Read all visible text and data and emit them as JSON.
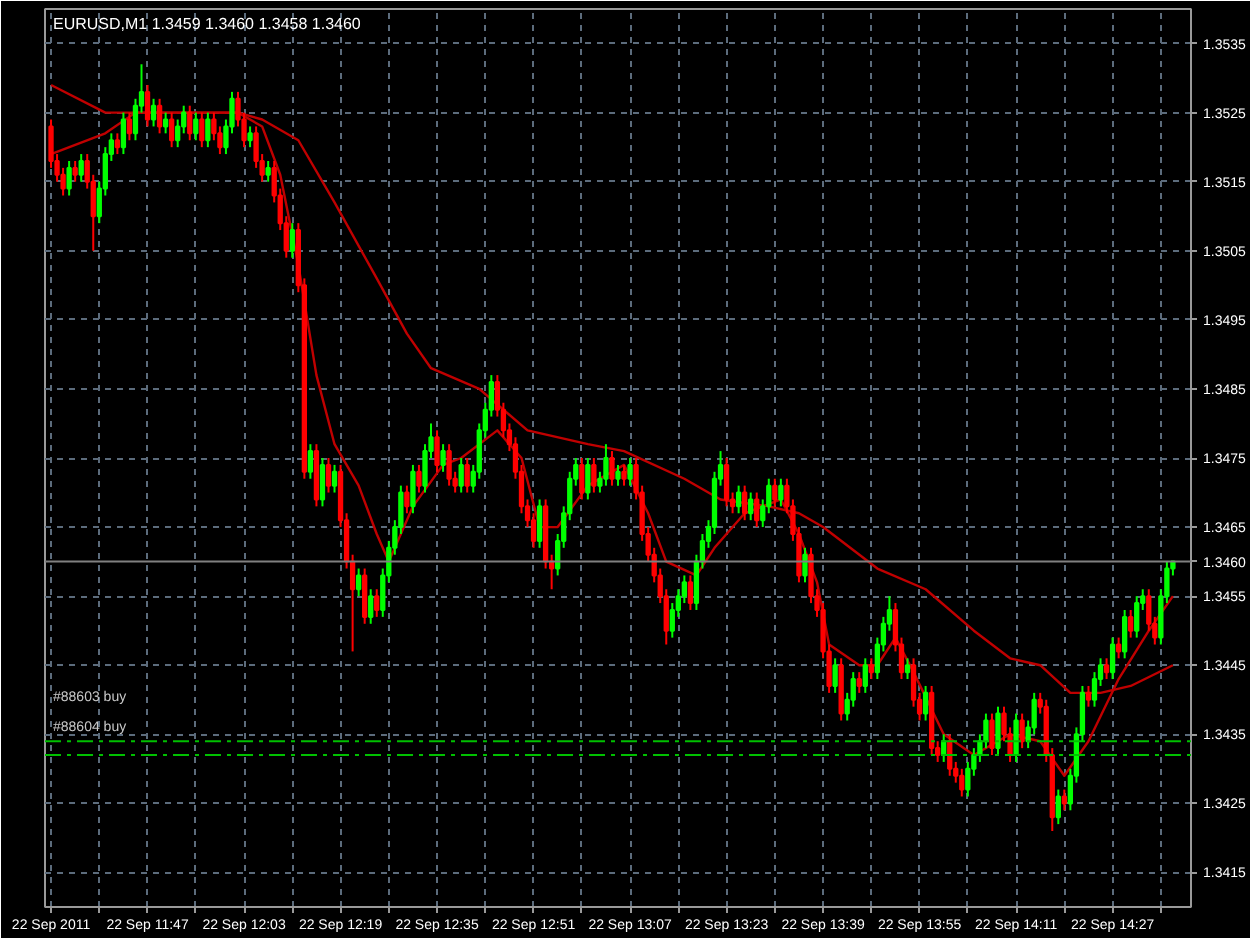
{
  "chart_data": {
    "type": "candlestick",
    "title": "EURUSD,M1  1.3459 1.3460 1.3458 1.3460",
    "x": [
      "2011-09-22T11:31",
      "2011-09-22T11:32",
      "2011-09-22T11:33",
      "2011-09-22T11:34",
      "2011-09-22T11:35",
      "2011-09-22T11:36",
      "2011-09-22T11:37",
      "2011-09-22T11:38",
      "2011-09-22T11:39",
      "2011-09-22T11:40",
      "2011-09-22T11:41",
      "2011-09-22T11:42",
      "2011-09-22T11:43",
      "2011-09-22T11:44",
      "2011-09-22T11:45",
      "2011-09-22T11:46",
      "2011-09-22T11:47",
      "2011-09-22T11:48",
      "2011-09-22T11:49",
      "2011-09-22T11:50",
      "2011-09-22T11:51",
      "2011-09-22T11:52",
      "2011-09-22T11:53",
      "2011-09-22T11:54",
      "2011-09-22T11:55",
      "2011-09-22T11:56",
      "2011-09-22T11:57",
      "2011-09-22T11:58",
      "2011-09-22T11:59",
      "2011-09-22T12:00",
      "2011-09-22T12:01",
      "2011-09-22T12:02",
      "2011-09-22T12:03",
      "2011-09-22T12:04",
      "2011-09-22T12:05",
      "2011-09-22T12:06",
      "2011-09-22T12:07",
      "2011-09-22T12:08",
      "2011-09-22T12:09",
      "2011-09-22T12:10",
      "2011-09-22T12:11",
      "2011-09-22T12:12",
      "2011-09-22T12:13",
      "2011-09-22T12:14",
      "2011-09-22T12:15",
      "2011-09-22T12:16",
      "2011-09-22T12:17",
      "2011-09-22T12:18",
      "2011-09-22T12:19",
      "2011-09-22T12:20",
      "2011-09-22T12:21",
      "2011-09-22T12:22",
      "2011-09-22T12:23",
      "2011-09-22T12:24",
      "2011-09-22T12:25",
      "2011-09-22T12:26",
      "2011-09-22T12:27",
      "2011-09-22T12:28",
      "2011-09-22T12:29",
      "2011-09-22T12:30",
      "2011-09-22T12:31",
      "2011-09-22T12:32",
      "2011-09-22T12:33",
      "2011-09-22T12:34",
      "2011-09-22T12:35",
      "2011-09-22T12:36",
      "2011-09-22T12:37",
      "2011-09-22T12:38",
      "2011-09-22T12:39",
      "2011-09-22T12:40",
      "2011-09-22T12:41",
      "2011-09-22T12:42",
      "2011-09-22T12:43",
      "2011-09-22T12:44",
      "2011-09-22T12:45",
      "2011-09-22T12:46",
      "2011-09-22T12:47",
      "2011-09-22T12:48",
      "2011-09-22T12:49",
      "2011-09-22T12:50",
      "2011-09-22T12:51",
      "2011-09-22T12:52",
      "2011-09-22T12:53",
      "2011-09-22T12:54",
      "2011-09-22T12:55",
      "2011-09-22T12:56",
      "2011-09-22T12:57",
      "2011-09-22T12:58",
      "2011-09-22T12:59",
      "2011-09-22T13:00",
      "2011-09-22T13:01",
      "2011-09-22T13:02",
      "2011-09-22T13:03",
      "2011-09-22T13:04",
      "2011-09-22T13:05",
      "2011-09-22T13:06",
      "2011-09-22T13:07",
      "2011-09-22T13:08",
      "2011-09-22T13:09",
      "2011-09-22T13:10",
      "2011-09-22T13:11",
      "2011-09-22T13:12",
      "2011-09-22T13:13",
      "2011-09-22T13:14",
      "2011-09-22T13:15",
      "2011-09-22T13:16",
      "2011-09-22T13:17",
      "2011-09-22T13:18",
      "2011-09-22T13:19",
      "2011-09-22T13:20",
      "2011-09-22T13:21",
      "2011-09-22T13:22",
      "2011-09-22T13:23",
      "2011-09-22T13:24",
      "2011-09-22T13:25",
      "2011-09-22T13:26",
      "2011-09-22T13:27",
      "2011-09-22T13:28",
      "2011-09-22T13:29",
      "2011-09-22T13:30",
      "2011-09-22T13:31",
      "2011-09-22T13:32",
      "2011-09-22T13:33",
      "2011-09-22T13:34",
      "2011-09-22T13:35",
      "2011-09-22T13:36",
      "2011-09-22T13:37",
      "2011-09-22T13:38",
      "2011-09-22T13:39",
      "2011-09-22T13:40",
      "2011-09-22T13:41",
      "2011-09-22T13:42",
      "2011-09-22T13:43",
      "2011-09-22T13:44",
      "2011-09-22T13:45",
      "2011-09-22T13:46",
      "2011-09-22T13:47",
      "2011-09-22T13:48",
      "2011-09-22T13:49",
      "2011-09-22T13:50",
      "2011-09-22T13:51",
      "2011-09-22T13:52",
      "2011-09-22T13:53",
      "2011-09-22T13:54",
      "2011-09-22T13:55",
      "2011-09-22T13:56",
      "2011-09-22T13:57",
      "2011-09-22T13:58",
      "2011-09-22T13:59",
      "2011-09-22T14:00",
      "2011-09-22T14:01",
      "2011-09-22T14:02",
      "2011-09-22T14:03",
      "2011-09-22T14:04",
      "2011-09-22T14:05",
      "2011-09-22T14:06",
      "2011-09-22T14:07",
      "2011-09-22T14:08",
      "2011-09-22T14:09",
      "2011-09-22T14:10",
      "2011-09-22T14:11",
      "2011-09-22T14:12",
      "2011-09-22T14:13",
      "2011-09-22T14:14",
      "2011-09-22T14:15",
      "2011-09-22T14:16",
      "2011-09-22T14:17",
      "2011-09-22T14:18",
      "2011-09-22T14:19",
      "2011-09-22T14:20",
      "2011-09-22T14:21",
      "2011-09-22T14:22",
      "2011-09-22T14:23",
      "2011-09-22T14:24",
      "2011-09-22T14:25",
      "2011-09-22T14:26",
      "2011-09-22T14:27",
      "2011-09-22T14:28",
      "2011-09-22T14:29",
      "2011-09-22T14:30",
      "2011-09-22T14:31",
      "2011-09-22T14:32",
      "2011-09-22T14:33",
      "2011-09-22T14:34",
      "2011-09-22T14:35",
      "2011-09-22T14:36",
      "2011-09-22T14:37"
    ],
    "ohlc": [
      [
        1.3523,
        1.3524,
        1.3517,
        1.3518
      ],
      [
        1.3518,
        1.3519,
        1.3515,
        1.3516
      ],
      [
        1.3516,
        1.3517,
        1.3513,
        1.3514
      ],
      [
        1.3514,
        1.3518,
        1.3513,
        1.3517
      ],
      [
        1.3517,
        1.3518,
        1.3515,
        1.3516
      ],
      [
        1.3516,
        1.3519,
        1.3515,
        1.3518
      ],
      [
        1.3518,
        1.3519,
        1.3514,
        1.3515
      ],
      [
        1.3515,
        1.3516,
        1.3505,
        1.351
      ],
      [
        1.351,
        1.3515,
        1.3509,
        1.3514
      ],
      [
        1.3514,
        1.352,
        1.3513,
        1.3519
      ],
      [
        1.3519,
        1.3522,
        1.3518,
        1.3521
      ],
      [
        1.3521,
        1.3522,
        1.3519,
        1.352
      ],
      [
        1.352,
        1.3525,
        1.3519,
        1.3524
      ],
      [
        1.3524,
        1.3525,
        1.3521,
        1.3522
      ],
      [
        1.3522,
        1.3527,
        1.3521,
        1.3526
      ],
      [
        1.3526,
        1.3532,
        1.3525,
        1.3528
      ],
      [
        1.3528,
        1.3529,
        1.3523,
        1.3524
      ],
      [
        1.3524,
        1.3527,
        1.3523,
        1.3526
      ],
      [
        1.3526,
        1.3527,
        1.3522,
        1.3523
      ],
      [
        1.3523,
        1.3525,
        1.3522,
        1.3524
      ],
      [
        1.3524,
        1.3525,
        1.352,
        1.3521
      ],
      [
        1.3521,
        1.3524,
        1.352,
        1.3523
      ],
      [
        1.3523,
        1.3526,
        1.3522,
        1.3525
      ],
      [
        1.3525,
        1.3526,
        1.3521,
        1.3522
      ],
      [
        1.3522,
        1.3525,
        1.3521,
        1.3524
      ],
      [
        1.3524,
        1.3525,
        1.352,
        1.3521
      ],
      [
        1.3521,
        1.3525,
        1.352,
        1.3524
      ],
      [
        1.3524,
        1.3525,
        1.3521,
        1.3522
      ],
      [
        1.3522,
        1.3523,
        1.3519,
        1.352
      ],
      [
        1.352,
        1.3524,
        1.3519,
        1.3523
      ],
      [
        1.3523,
        1.3528,
        1.3522,
        1.3527
      ],
      [
        1.3527,
        1.3528,
        1.3523,
        1.3524
      ],
      [
        1.3524,
        1.3525,
        1.352,
        1.3521
      ],
      [
        1.3521,
        1.3523,
        1.352,
        1.3522
      ],
      [
        1.3522,
        1.3523,
        1.3517,
        1.3518
      ],
      [
        1.3518,
        1.3519,
        1.3515,
        1.3516
      ],
      [
        1.3516,
        1.3518,
        1.3515,
        1.3517
      ],
      [
        1.3517,
        1.3518,
        1.3512,
        1.3513
      ],
      [
        1.3513,
        1.3514,
        1.3508,
        1.3509
      ],
      [
        1.3509,
        1.351,
        1.3504,
        1.3505
      ],
      [
        1.3505,
        1.3509,
        1.3504,
        1.3508
      ],
      [
        1.3508,
        1.3509,
        1.3499,
        1.35
      ],
      [
        1.35,
        1.3501,
        1.3472,
        1.3473
      ],
      [
        1.3473,
        1.3477,
        1.3472,
        1.3476
      ],
      [
        1.3476,
        1.3477,
        1.3468,
        1.3469
      ],
      [
        1.3469,
        1.3475,
        1.3468,
        1.3474
      ],
      [
        1.3474,
        1.3475,
        1.347,
        1.3471
      ],
      [
        1.3471,
        1.3474,
        1.347,
        1.3473
      ],
      [
        1.3473,
        1.3474,
        1.3465,
        1.3466
      ],
      [
        1.3466,
        1.3467,
        1.3459,
        1.346
      ],
      [
        1.346,
        1.3461,
        1.3447,
        1.3456
      ],
      [
        1.3456,
        1.3459,
        1.3455,
        1.3458
      ],
      [
        1.3458,
        1.3459,
        1.3451,
        1.3452
      ],
      [
        1.3452,
        1.3456,
        1.3451,
        1.3455
      ],
      [
        1.3455,
        1.3456,
        1.3452,
        1.3453
      ],
      [
        1.3453,
        1.3459,
        1.3452,
        1.3458
      ],
      [
        1.3458,
        1.3463,
        1.3457,
        1.3462
      ],
      [
        1.3462,
        1.3466,
        1.3461,
        1.3465
      ],
      [
        1.3465,
        1.3471,
        1.3464,
        1.347
      ],
      [
        1.347,
        1.3471,
        1.3467,
        1.3468
      ],
      [
        1.3468,
        1.3474,
        1.3467,
        1.3473
      ],
      [
        1.3473,
        1.3474,
        1.347,
        1.3471
      ],
      [
        1.3471,
        1.3477,
        1.347,
        1.3476
      ],
      [
        1.3476,
        1.348,
        1.3475,
        1.3478
      ],
      [
        1.3478,
        1.3479,
        1.3473,
        1.3474
      ],
      [
        1.3474,
        1.3477,
        1.3473,
        1.3476
      ],
      [
        1.3476,
        1.3477,
        1.3471,
        1.3472
      ],
      [
        1.3472,
        1.3473,
        1.347,
        1.3471
      ],
      [
        1.3471,
        1.3475,
        1.347,
        1.3474
      ],
      [
        1.3474,
        1.3475,
        1.347,
        1.3471
      ],
      [
        1.3471,
        1.3474,
        1.347,
        1.3473
      ],
      [
        1.3473,
        1.348,
        1.3472,
        1.3479
      ],
      [
        1.3479,
        1.3483,
        1.3478,
        1.3482
      ],
      [
        1.3482,
        1.3487,
        1.3481,
        1.3486
      ],
      [
        1.3486,
        1.3487,
        1.3481,
        1.3482
      ],
      [
        1.3482,
        1.3483,
        1.3478,
        1.3479
      ],
      [
        1.3479,
        1.348,
        1.3476,
        1.3477
      ],
      [
        1.3477,
        1.3478,
        1.3472,
        1.3473
      ],
      [
        1.3473,
        1.3474,
        1.3467,
        1.3468
      ],
      [
        1.3468,
        1.3469,
        1.3465,
        1.3466
      ],
      [
        1.3466,
        1.3467,
        1.3462,
        1.3463
      ],
      [
        1.3463,
        1.3469,
        1.3462,
        1.3468
      ],
      [
        1.3468,
        1.3469,
        1.3459,
        1.346
      ],
      [
        1.346,
        1.3461,
        1.3456,
        1.3459
      ],
      [
        1.3459,
        1.3464,
        1.3458,
        1.3463
      ],
      [
        1.3463,
        1.3468,
        1.3462,
        1.3467
      ],
      [
        1.3467,
        1.3473,
        1.3466,
        1.3472
      ],
      [
        1.3472,
        1.3475,
        1.3471,
        1.3474
      ],
      [
        1.3474,
        1.3475,
        1.3469,
        1.347
      ],
      [
        1.347,
        1.3475,
        1.3469,
        1.3474
      ],
      [
        1.3474,
        1.3475,
        1.347,
        1.3471
      ],
      [
        1.3471,
        1.3473,
        1.347,
        1.3472
      ],
      [
        1.3472,
        1.3477,
        1.3471,
        1.3475
      ],
      [
        1.3475,
        1.3476,
        1.3471,
        1.3472
      ],
      [
        1.3472,
        1.3474,
        1.3471,
        1.3473
      ],
      [
        1.3473,
        1.3474,
        1.3471,
        1.3472
      ],
      [
        1.3472,
        1.3475,
        1.3471,
        1.3474
      ],
      [
        1.3474,
        1.3475,
        1.3469,
        1.347
      ],
      [
        1.347,
        1.3471,
        1.3463,
        1.3464
      ],
      [
        1.3464,
        1.3465,
        1.346,
        1.3461
      ],
      [
        1.3461,
        1.3462,
        1.3457,
        1.3458
      ],
      [
        1.3458,
        1.3459,
        1.3454,
        1.3455
      ],
      [
        1.3455,
        1.3456,
        1.3448,
        1.345
      ],
      [
        1.345,
        1.3454,
        1.3449,
        1.3453
      ],
      [
        1.3453,
        1.3456,
        1.3452,
        1.3455
      ],
      [
        1.3455,
        1.3458,
        1.3454,
        1.3457
      ],
      [
        1.3457,
        1.3458,
        1.3453,
        1.3454
      ],
      [
        1.3454,
        1.3461,
        1.3453,
        1.346
      ],
      [
        1.346,
        1.3464,
        1.3459,
        1.3463
      ],
      [
        1.3463,
        1.3466,
        1.3462,
        1.3465
      ],
      [
        1.3465,
        1.3473,
        1.3464,
        1.3472
      ],
      [
        1.3472,
        1.3476,
        1.3471,
        1.3474
      ],
      [
        1.3474,
        1.3475,
        1.3468,
        1.3469
      ],
      [
        1.3469,
        1.347,
        1.3467,
        1.3468
      ],
      [
        1.3468,
        1.3471,
        1.3467,
        1.347
      ],
      [
        1.347,
        1.3471,
        1.3466,
        1.3467
      ],
      [
        1.3467,
        1.347,
        1.3466,
        1.3469
      ],
      [
        1.3469,
        1.347,
        1.3465,
        1.3466
      ],
      [
        1.3466,
        1.3469,
        1.3465,
        1.3468
      ],
      [
        1.3468,
        1.3472,
        1.3467,
        1.3471
      ],
      [
        1.3471,
        1.3472,
        1.3468,
        1.3469
      ],
      [
        1.3469,
        1.3472,
        1.3468,
        1.3471
      ],
      [
        1.3471,
        1.3472,
        1.3467,
        1.3468
      ],
      [
        1.3468,
        1.3469,
        1.3463,
        1.3464
      ],
      [
        1.3464,
        1.3465,
        1.3457,
        1.3458
      ],
      [
        1.3458,
        1.3462,
        1.3457,
        1.3461
      ],
      [
        1.3461,
        1.3462,
        1.3454,
        1.3455
      ],
      [
        1.3455,
        1.3456,
        1.3452,
        1.3453
      ],
      [
        1.3453,
        1.3454,
        1.3446,
        1.3447
      ],
      [
        1.3447,
        1.3448,
        1.3441,
        1.3442
      ],
      [
        1.3442,
        1.3446,
        1.3441,
        1.3445
      ],
      [
        1.3445,
        1.3446,
        1.3437,
        1.3438
      ],
      [
        1.3438,
        1.3441,
        1.3437,
        1.344
      ],
      [
        1.344,
        1.3444,
        1.3439,
        1.3443
      ],
      [
        1.3443,
        1.3444,
        1.3441,
        1.3442
      ],
      [
        1.3442,
        1.3446,
        1.3441,
        1.3445
      ],
      [
        1.3445,
        1.3446,
        1.3443,
        1.3444
      ],
      [
        1.3444,
        1.3449,
        1.3443,
        1.3448
      ],
      [
        1.3448,
        1.3452,
        1.3447,
        1.3451
      ],
      [
        1.3451,
        1.3455,
        1.345,
        1.3453
      ],
      [
        1.3453,
        1.3454,
        1.3447,
        1.3448
      ],
      [
        1.3448,
        1.3449,
        1.3443,
        1.3444
      ],
      [
        1.3444,
        1.3446,
        1.3443,
        1.3445
      ],
      [
        1.3445,
        1.3446,
        1.3439,
        1.344
      ],
      [
        1.344,
        1.3441,
        1.3437,
        1.3438
      ],
      [
        1.3438,
        1.3442,
        1.3437,
        1.3441
      ],
      [
        1.3441,
        1.3442,
        1.3432,
        1.3433
      ],
      [
        1.3433,
        1.3434,
        1.3431,
        1.3432
      ],
      [
        1.3432,
        1.3435,
        1.3431,
        1.3434
      ],
      [
        1.3434,
        1.3435,
        1.3429,
        1.343
      ],
      [
        1.343,
        1.3431,
        1.3428,
        1.3429
      ],
      [
        1.3429,
        1.343,
        1.3426,
        1.3427
      ],
      [
        1.3427,
        1.3431,
        1.3426,
        1.343
      ],
      [
        1.343,
        1.3433,
        1.3429,
        1.3432
      ],
      [
        1.3432,
        1.3435,
        1.3431,
        1.3434
      ],
      [
        1.3434,
        1.3438,
        1.3433,
        1.3437
      ],
      [
        1.3437,
        1.3438,
        1.3432,
        1.3433
      ],
      [
        1.3433,
        1.3439,
        1.3432,
        1.3438
      ],
      [
        1.3438,
        1.3439,
        1.3434,
        1.3435
      ],
      [
        1.3435,
        1.3436,
        1.3431,
        1.3432
      ],
      [
        1.3432,
        1.3438,
        1.3431,
        1.3437
      ],
      [
        1.3437,
        1.3438,
        1.3433,
        1.3434
      ],
      [
        1.3434,
        1.3437,
        1.3433,
        1.3436
      ],
      [
        1.3436,
        1.3441,
        1.3435,
        1.344
      ],
      [
        1.344,
        1.3441,
        1.3438,
        1.3439
      ],
      [
        1.3439,
        1.344,
        1.3431,
        1.3432
      ],
      [
        1.3432,
        1.3433,
        1.3421,
        1.3423
      ],
      [
        1.3423,
        1.3427,
        1.3422,
        1.3426
      ],
      [
        1.3426,
        1.3427,
        1.3424,
        1.3425
      ],
      [
        1.3425,
        1.343,
        1.3424,
        1.3429
      ],
      [
        1.3429,
        1.3436,
        1.3428,
        1.3435
      ],
      [
        1.3435,
        1.3442,
        1.3434,
        1.3441
      ],
      [
        1.3441,
        1.3442,
        1.3439,
        1.344
      ],
      [
        1.344,
        1.3444,
        1.3439,
        1.3443
      ],
      [
        1.3443,
        1.3446,
        1.3442,
        1.3445
      ],
      [
        1.3445,
        1.3446,
        1.3443,
        1.3444
      ],
      [
        1.3444,
        1.3449,
        1.3443,
        1.3448
      ],
      [
        1.3448,
        1.3449,
        1.3446,
        1.3447
      ],
      [
        1.3447,
        1.3453,
        1.3446,
        1.3452
      ],
      [
        1.3452,
        1.3453,
        1.3449,
        1.345
      ],
      [
        1.345,
        1.3455,
        1.3449,
        1.3454
      ],
      [
        1.3454,
        1.3456,
        1.3453,
        1.3455
      ],
      [
        1.3455,
        1.3456,
        1.345,
        1.3451
      ],
      [
        1.3451,
        1.3452,
        1.3448,
        1.3449
      ],
      [
        1.3449,
        1.3456,
        1.3448,
        1.3455
      ],
      [
        1.3455,
        1.346,
        1.3454,
        1.3459
      ],
      [
        1.3459,
        1.346,
        1.3458,
        1.346
      ]
    ],
    "series": [
      {
        "type": "line",
        "color": "#c00000",
        "x": [
          "2011-09-22T11:31",
          "2011-09-22T11:40",
          "2011-09-22T11:50",
          "2011-09-22T12:02",
          "2011-09-22T12:06",
          "2011-09-22T12:12",
          "2011-09-22T12:18",
          "2011-09-22T12:25",
          "2011-09-22T12:30",
          "2011-09-22T12:34",
          "2011-09-22T12:42",
          "2011-09-22T12:50",
          "2011-09-22T13:00",
          "2011-09-22T13:06",
          "2011-09-22T13:16",
          "2011-09-22T13:22",
          "2011-09-22T13:30",
          "2011-09-22T13:35",
          "2011-09-22T13:39",
          "2011-09-22T13:48",
          "2011-09-22T13:56",
          "2011-09-22T14:04",
          "2011-09-22T14:10",
          "2011-09-22T14:15",
          "2011-09-22T14:20",
          "2011-09-22T14:25",
          "2011-09-22T14:30",
          "2011-09-22T14:37"
        ],
        "values": [
          1.3529,
          1.3525,
          1.3525,
          1.3525,
          1.3524,
          1.3521,
          1.3512,
          1.3501,
          1.3493,
          1.3488,
          1.3485,
          1.3479,
          1.3477,
          1.3476,
          1.3472,
          1.3469,
          1.3468,
          1.3467,
          1.3465,
          1.3459,
          1.3456,
          1.345,
          1.3446,
          1.3445,
          1.3441,
          1.3441,
          1.3442,
          1.3445
        ]
      },
      {
        "type": "line",
        "color": "#c00000",
        "x": [
          "2011-09-22T11:31",
          "2011-09-22T11:40",
          "2011-09-22T11:45",
          "2011-09-22T12:02",
          "2011-09-22T12:06",
          "2011-09-22T12:09",
          "2011-09-22T12:12",
          "2011-09-22T12:15",
          "2011-09-22T12:18",
          "2011-09-22T12:22",
          "2011-09-22T12:25",
          "2011-09-22T12:27",
          "2011-09-22T12:31",
          "2011-09-22T12:36",
          "2011-09-22T12:39",
          "2011-09-22T12:45",
          "2011-09-22T12:49",
          "2011-09-22T12:52",
          "2011-09-22T12:55",
          "2011-09-22T13:00",
          "2011-09-22T13:06",
          "2011-09-22T13:10",
          "2011-09-22T13:13",
          "2011-09-22T13:18",
          "2011-09-22T13:21",
          "2011-09-22T13:26",
          "2011-09-22T13:32",
          "2011-09-22T13:35",
          "2011-09-22T13:38",
          "2011-09-22T13:40",
          "2011-09-22T13:45",
          "2011-09-22T13:48",
          "2011-09-22T13:51",
          "2011-09-22T13:54",
          "2011-09-22T13:59",
          "2011-09-22T14:04",
          "2011-09-22T14:10",
          "2011-09-22T14:15",
          "2011-09-22T14:19",
          "2011-09-22T14:23",
          "2011-09-22T14:28",
          "2011-09-22T14:33",
          "2011-09-22T14:37"
        ],
        "values": [
          1.3519,
          1.3522,
          1.3525,
          1.3525,
          1.3523,
          1.3516,
          1.3503,
          1.3487,
          1.3477,
          1.3471,
          1.3464,
          1.346,
          1.3468,
          1.3474,
          1.3475,
          1.3479,
          1.3475,
          1.3465,
          1.3465,
          1.3471,
          1.3474,
          1.3467,
          1.346,
          1.3458,
          1.3462,
          1.3467,
          1.3469,
          1.3464,
          1.3457,
          1.3448,
          1.3445,
          1.3445,
          1.3449,
          1.3444,
          1.3435,
          1.3432,
          1.3435,
          1.3434,
          1.3429,
          1.3434,
          1.3443,
          1.345,
          1.3455
        ]
      }
    ],
    "xlim": [
      "2011-09-22T11:30",
      "2011-09-22T14:40"
    ],
    "xticks": [
      {
        "value": "2011-09-22T11:31",
        "label": "22 Sep 2011"
      },
      {
        "value": "2011-09-22T11:39",
        "label": null
      },
      {
        "value": "2011-09-22T11:47",
        "label": "22 Sep 11:47"
      },
      {
        "value": "2011-09-22T11:55",
        "label": null
      },
      {
        "value": "2011-09-22T12:03",
        "label": "22 Sep 12:03"
      },
      {
        "value": "2011-09-22T12:11",
        "label": null
      },
      {
        "value": "2011-09-22T12:19",
        "label": "22 Sep 12:19"
      },
      {
        "value": "2011-09-22T12:27",
        "label": null
      },
      {
        "value": "2011-09-22T12:35",
        "label": "22 Sep 12:35"
      },
      {
        "value": "2011-09-22T12:43",
        "label": null
      },
      {
        "value": "2011-09-22T12:51",
        "label": "22 Sep 12:51"
      },
      {
        "value": "2011-09-22T12:59",
        "label": null
      },
      {
        "value": "2011-09-22T13:07",
        "label": "22 Sep 13:07"
      },
      {
        "value": "2011-09-22T13:15",
        "label": null
      },
      {
        "value": "2011-09-22T13:23",
        "label": "22 Sep 13:23"
      },
      {
        "value": "2011-09-22T13:31",
        "label": null
      },
      {
        "value": "2011-09-22T13:39",
        "label": "22 Sep 13:39"
      },
      {
        "value": "2011-09-22T13:47",
        "label": null
      },
      {
        "value": "2011-09-22T13:55",
        "label": "22 Sep 13:55"
      },
      {
        "value": "2011-09-22T14:03",
        "label": null
      },
      {
        "value": "2011-09-22T14:11",
        "label": "22 Sep 14:11"
      },
      {
        "value": "2011-09-22T14:19",
        "label": null
      },
      {
        "value": "2011-09-22T14:27",
        "label": "22 Sep 14:27"
      },
      {
        "value": "2011-09-22T14:35",
        "label": null
      }
    ],
    "ylim": [
      1.341,
      1.354
    ],
    "yticks": [
      1.3415,
      1.3425,
      1.3435,
      1.3445,
      1.3455,
      1.3465,
      1.3475,
      1.3485,
      1.3495,
      1.3505,
      1.3515,
      1.3525,
      1.3535
    ],
    "ref_lines": [
      {
        "axis": "y",
        "value": 1.346,
        "label": "1.3460",
        "color": "#808080",
        "line_style": "solid"
      },
      {
        "axis": "y",
        "value": 1.3434,
        "label": "#88603 buy",
        "color": "#00c000",
        "line_style": "dashed"
      },
      {
        "axis": "y",
        "value": 1.3432,
        "label": "#88604 buy",
        "color": "#00c000",
        "line_style": "dashed"
      }
    ],
    "grid": true
  }
}
